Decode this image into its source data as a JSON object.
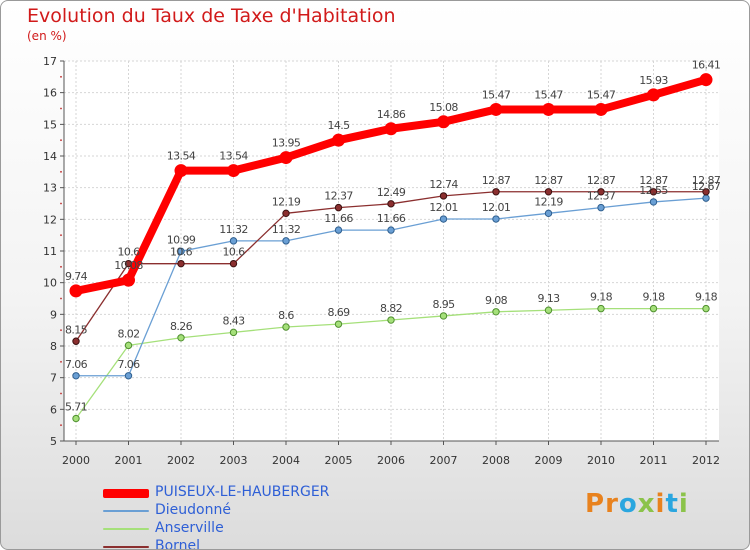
{
  "header": {
    "title": "Evolution du Taux de Taxe d'Habitation",
    "unit": "(en %)"
  },
  "logo": {
    "text": "Proxiti"
  },
  "chart_data": {
    "type": "line",
    "title": "Evolution du Taux de Taxe d'Habitation",
    "ylabel": "(en %)",
    "xlabel": "",
    "x": [
      "2000",
      "2001",
      "2002",
      "2003",
      "2004",
      "2005",
      "2006",
      "2007",
      "2008",
      "2009",
      "2010",
      "2011",
      "2012"
    ],
    "ylim": [
      5,
      17
    ],
    "yticks": [
      5,
      6,
      7,
      8,
      9,
      10,
      11,
      12,
      13,
      14,
      15,
      16,
      17
    ],
    "grid": true,
    "legend_position": "bottom-left",
    "series": [
      {
        "name": "PUISEUX-LE-HAUBERGER",
        "color": "#ff0000",
        "values": [
          9.74,
          10.08,
          13.54,
          13.54,
          13.95,
          14.5,
          14.86,
          15.08,
          15.47,
          15.47,
          15.47,
          15.93,
          16.41
        ],
        "labels": [
          "9.74",
          "10.08",
          "13.54",
          "13.54",
          "13.95",
          "14.5",
          "14.86",
          "15.08",
          "15.47",
          "15.47",
          "15.47",
          "15.93",
          "16.41"
        ]
      },
      {
        "name": "Dieudonné",
        "color": "#6a9fd4",
        "values": [
          7.06,
          7.06,
          10.99,
          11.32,
          11.32,
          11.66,
          11.66,
          12.01,
          12.01,
          12.19,
          12.37,
          12.55,
          12.67
        ],
        "labels": [
          "7.06",
          "7.06",
          "10.99",
          "11.32",
          "11.32",
          "11.66",
          "11.66",
          "12.01",
          "12.01",
          "12.19",
          "12.37",
          "12.55",
          "12.67"
        ]
      },
      {
        "name": "Anserville",
        "color": "#a5e07a",
        "values": [
          5.71,
          8.02,
          8.26,
          8.43,
          8.6,
          8.69,
          8.82,
          8.95,
          9.08,
          9.13,
          9.18,
          9.18,
          9.18
        ],
        "labels": [
          "5.71",
          "8.02",
          "8.26",
          "8.43",
          "8.6",
          "8.69",
          "8.82",
          "8.95",
          "9.08",
          "9.13",
          "9.18",
          "9.18",
          "9.18"
        ]
      },
      {
        "name": "Bornel",
        "color": "#8b2f2f",
        "values": [
          8.15,
          10.6,
          10.6,
          10.6,
          12.19,
          12.37,
          12.49,
          12.74,
          12.87,
          12.87,
          12.87,
          12.87,
          12.87
        ],
        "labels": [
          "8.15",
          "10.6",
          "10.6",
          "10.6",
          "12.19",
          "12.37",
          "12.49",
          "12.74",
          "12.87",
          "12.87",
          "12.87",
          "12.87",
          "12.87"
        ]
      }
    ]
  }
}
